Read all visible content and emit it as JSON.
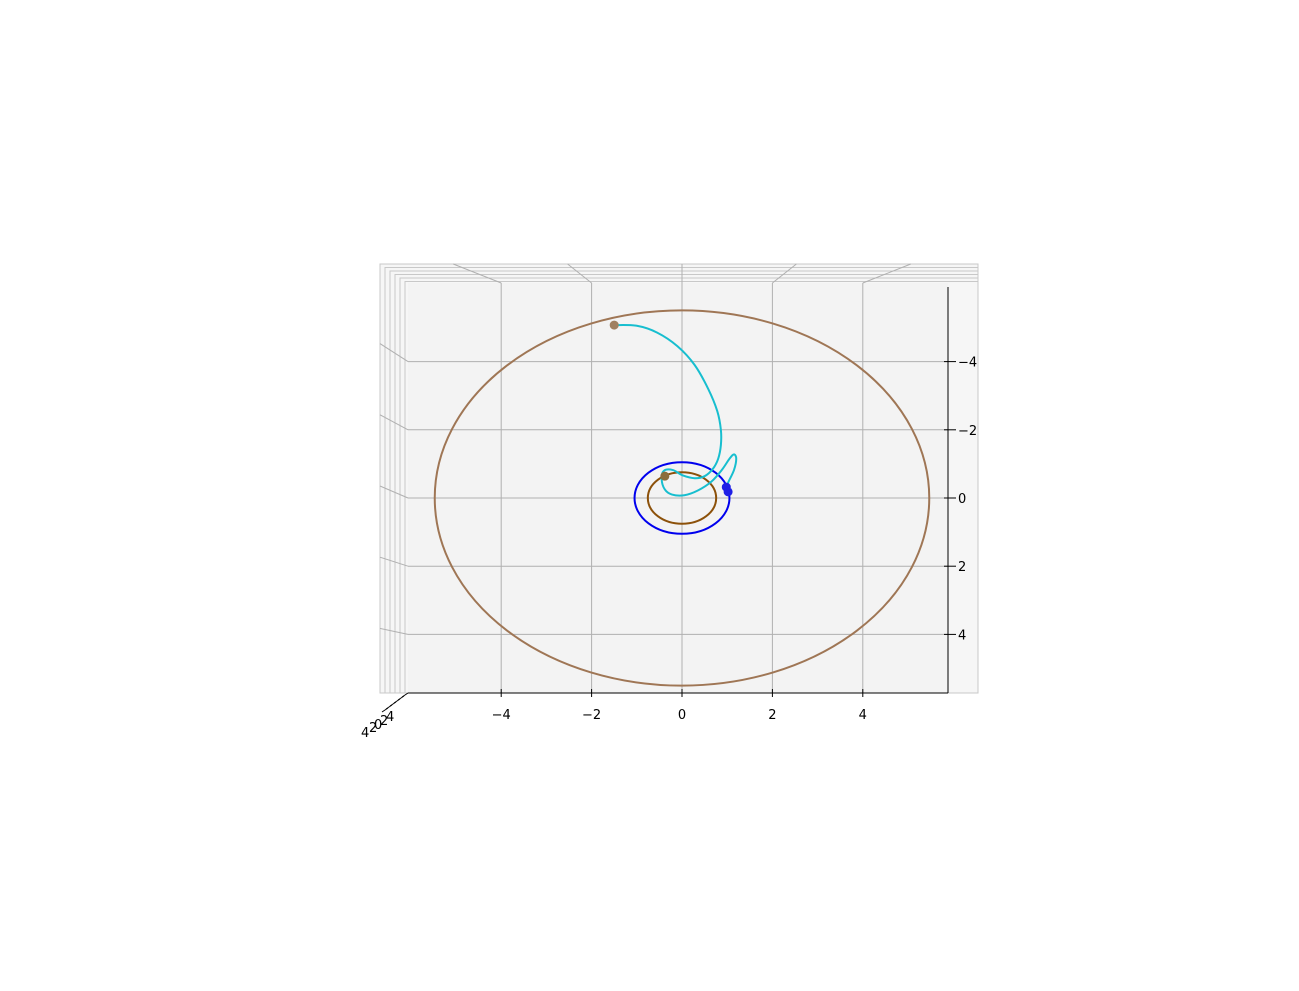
{
  "chart_data": {
    "type": "line",
    "projection": "3d",
    "view": "top-down",
    "title": "",
    "xlabel": "",
    "ylabel": "",
    "zlabel": "",
    "xlim": [
      -6,
      6
    ],
    "ylim": [
      -6,
      6
    ],
    "grid": true,
    "legend": "none",
    "x_ticks": [
      -4,
      -2,
      0,
      2,
      4
    ],
    "x_tick_labels": [
      "−4",
      "−2",
      "0",
      "2",
      "4"
    ],
    "y_ticks": [
      -4,
      -2,
      0,
      2,
      4
    ],
    "y_tick_labels": [
      "−4",
      "−2",
      "0",
      "2",
      "4"
    ],
    "z_tick_labels": [
      "4",
      "2",
      "0",
      "2",
      "4"
    ],
    "colors": {
      "pane": "#f2f2f2",
      "grid": "#b0b0b0",
      "transfer": "#17becf",
      "inner_orbit": "#8c510a",
      "mid_orbit": "#0000ee",
      "outer_orbit": "#9f7655",
      "body_small": "#8b6d3b",
      "body_blue": "#1f1fe6",
      "body_outer": "#a08060"
    },
    "series": [
      {
        "key": "inner_orbit",
        "shape": "circle",
        "center": [
          0,
          0
        ],
        "radius": 0.72,
        "color": "#8c510a"
      },
      {
        "key": "mid_orbit",
        "shape": "circle",
        "center": [
          0,
          0
        ],
        "radius": 1.0,
        "color": "#0000ee"
      },
      {
        "key": "outer_orbit",
        "shape": "circle",
        "center": [
          0,
          0
        ],
        "radius": 5.2,
        "color": "#9f7655"
      },
      {
        "key": "transfer",
        "shape": "polyline",
        "color": "#17becf",
        "points": [
          [
            -1.5,
            -5.07
          ],
          [
            -1.0,
            -5.05
          ],
          [
            -0.55,
            -4.85
          ],
          [
            -0.1,
            -4.45
          ],
          [
            0.28,
            -3.9
          ],
          [
            0.58,
            -3.2
          ],
          [
            0.78,
            -2.55
          ],
          [
            0.86,
            -2.0
          ],
          [
            0.86,
            -1.55
          ],
          [
            0.8,
            -1.15
          ],
          [
            0.68,
            -0.85
          ],
          [
            0.5,
            -0.64
          ],
          [
            0.28,
            -0.58
          ],
          [
            0.02,
            -0.66
          ],
          [
            -0.2,
            -0.82
          ],
          [
            -0.4,
            -0.8
          ],
          [
            -0.45,
            -0.55
          ],
          [
            -0.38,
            -0.25
          ],
          [
            -0.22,
            -0.1
          ],
          [
            0.05,
            -0.08
          ],
          [
            0.35,
            -0.22
          ],
          [
            0.65,
            -0.48
          ],
          [
            0.88,
            -0.82
          ],
          [
            1.05,
            -1.15
          ],
          [
            1.15,
            -1.28
          ],
          [
            1.2,
            -1.15
          ],
          [
            1.15,
            -0.82
          ],
          [
            1.02,
            -0.45
          ],
          [
            0.95,
            -0.2
          ]
        ]
      }
    ],
    "markers": [
      {
        "key": "body_outer",
        "x": -1.5,
        "y": -5.07,
        "color": "#a08060"
      },
      {
        "key": "body_small",
        "x": -0.38,
        "y": -0.64,
        "color": "#8b6d3b"
      },
      {
        "key": "body_blue",
        "x": 0.98,
        "y": -0.32,
        "color": "#1f1fe6"
      },
      {
        "key": "body_blue2",
        "x": 1.02,
        "y": -0.18,
        "color": "#1f1fe6"
      }
    ]
  }
}
